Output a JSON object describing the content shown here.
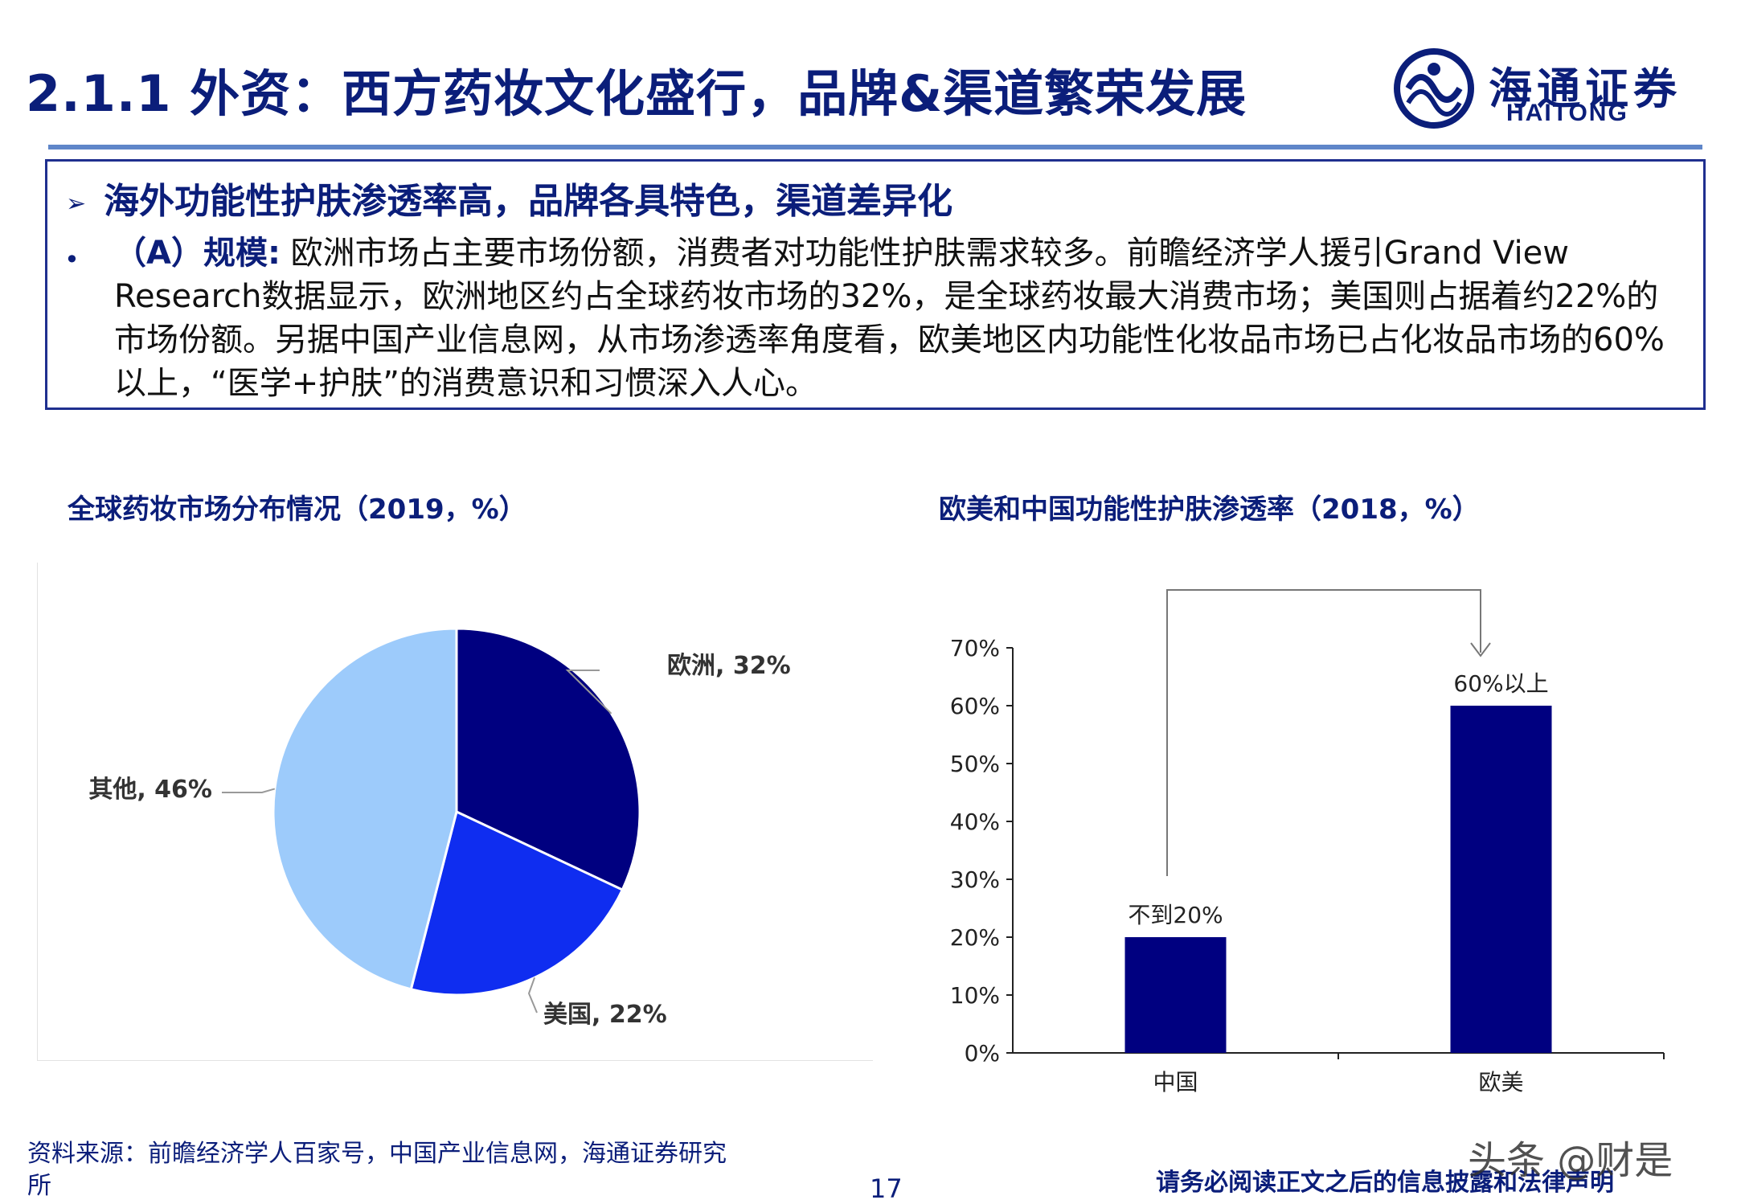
{
  "slide": {
    "title": "2.1.1 外资：西方药妆文化盛行，品牌&渠道繁荣发展",
    "page_number": "17",
    "disclaimer": "请务必阅读正文之后的信息披露和法律声明",
    "watermark": "头条 @财是"
  },
  "logo": {
    "cn": "海通证券",
    "en": "HAITONG"
  },
  "box": {
    "heading_marker": "➢",
    "heading": "海外功能性护肤渗透率高，品牌各具特色，渠道差异化",
    "bullet_marker": "•",
    "lead": "（A）规模:",
    "body": " 欧洲市场占主要市场份额，消费者对功能性护肤需求较多。前瞻经济学人援引Grand View Research数据显示，欧洲地区约占全球药妆市场的32%，是全球药妆最大消费市场；美国则占据着约22%的市场份额。另据中国产业信息网，从市场渗透率角度看，欧美地区内功能性化妆品市场已占化妆品市场的60%以上，“医学+护肤”的消费意识和习惯深入人心。"
  },
  "source": "资料来源：前瞻经济学人百家号，中国产业信息网，海通证券研究所",
  "charts": {
    "pie_title": "全球药妆市场分布情况（2019，%）",
    "bar_title": "欧美和中国功能性护肤渗透率（2018，%）"
  },
  "chart_data": [
    {
      "type": "pie",
      "title": "全球药妆市场分布情况（2019，%）",
      "slices": [
        {
          "label": "欧洲, 32%",
          "name": "欧洲",
          "value": 32,
          "color": "#000080"
        },
        {
          "label": "美国, 22%",
          "name": "美国",
          "value": 22,
          "color": "#0f2df0"
        },
        {
          "label": "其他, 46%",
          "name": "其他",
          "value": 46,
          "color": "#9dcbfb"
        }
      ]
    },
    {
      "type": "bar",
      "title": "欧美和中国功能性护肤渗透率（2018，%）",
      "categories": [
        "中国",
        "欧美"
      ],
      "values": [
        20,
        60
      ],
      "data_labels": [
        "不到20%",
        "60%以上"
      ],
      "ylim": [
        0,
        70
      ],
      "yticks": [
        "0%",
        "10%",
        "20%",
        "30%",
        "40%",
        "50%",
        "60%",
        "70%"
      ],
      "bar_color": "#000080",
      "grid": false
    }
  ]
}
